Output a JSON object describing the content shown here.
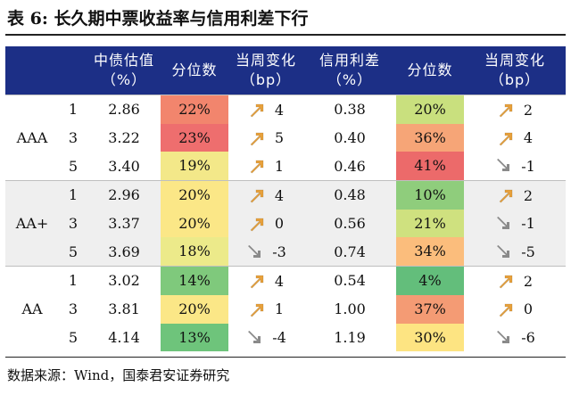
{
  "title": "表 6:  长久期中票收益率与信用利差下行",
  "columns": {
    "yield": [
      "中债估值",
      "（%）"
    ],
    "yield_pct": [
      "分位数"
    ],
    "yield_chg": [
      "当周变化",
      "（bp）"
    ],
    "spread": [
      "信用利差",
      "（%）"
    ],
    "spread_pct": [
      "分位数"
    ],
    "spread_chg": [
      "当周变化",
      "（bp）"
    ]
  },
  "colors": {
    "header_bg": "#1c2f86",
    "arrow_up": "#e8a13c",
    "arrow_down": "#8a8a8a"
  },
  "groups": [
    {
      "rating": "AAA",
      "rows": [
        {
          "tenor": "1",
          "yield": "2.86",
          "yield_pct": "22%",
          "yield_pct_color": "#f2856d",
          "yield_dir": "up",
          "yield_chg": "4",
          "spread": "0.38",
          "spread_pct": "20%",
          "spread_pct_color": "#c9e07e",
          "spread_dir": "up",
          "spread_chg": "2"
        },
        {
          "tenor": "3",
          "yield": "3.22",
          "yield_pct": "23%",
          "yield_pct_color": "#ee6e6e",
          "yield_dir": "up",
          "yield_chg": "5",
          "spread": "0.40",
          "spread_pct": "36%",
          "spread_pct_color": "#f6a577",
          "spread_dir": "up",
          "spread_chg": "4"
        },
        {
          "tenor": "5",
          "yield": "3.40",
          "yield_pct": "19%",
          "yield_pct_color": "#f3e889",
          "yield_dir": "up",
          "yield_chg": "1",
          "spread": "0.46",
          "spread_pct": "41%",
          "spread_pct_color": "#ec6a6a",
          "spread_dir": "down",
          "spread_chg": "-1"
        }
      ]
    },
    {
      "rating": "AA+",
      "rows": [
        {
          "tenor": "1",
          "yield": "2.96",
          "yield_pct": "20%",
          "yield_pct_color": "#fbe787",
          "yield_dir": "up",
          "yield_chg": "4",
          "spread": "0.48",
          "spread_pct": "10%",
          "spread_pct_color": "#8fcd7c",
          "spread_dir": "up",
          "spread_chg": "2"
        },
        {
          "tenor": "3",
          "yield": "3.37",
          "yield_pct": "20%",
          "yield_pct_color": "#fbe787",
          "yield_dir": "up",
          "yield_chg": "0",
          "spread": "0.56",
          "spread_pct": "21%",
          "spread_pct_color": "#cfe17f",
          "spread_dir": "down",
          "spread_chg": "-1"
        },
        {
          "tenor": "5",
          "yield": "3.69",
          "yield_pct": "18%",
          "yield_pct_color": "#ecea8a",
          "yield_dir": "down",
          "yield_chg": "-3",
          "spread": "0.74",
          "spread_pct": "34%",
          "spread_pct_color": "#fbbd7c",
          "spread_dir": "down",
          "spread_chg": "-5"
        }
      ]
    },
    {
      "rating": "AA",
      "rows": [
        {
          "tenor": "1",
          "yield": "3.02",
          "yield_pct": "14%",
          "yield_pct_color": "#7fc97c",
          "yield_dir": "up",
          "yield_chg": "4",
          "spread": "0.54",
          "spread_pct": "4%",
          "spread_pct_color": "#63be7b",
          "spread_dir": "up",
          "spread_chg": "2"
        },
        {
          "tenor": "3",
          "yield": "3.81",
          "yield_pct": "20%",
          "yield_pct_color": "#fbe787",
          "yield_dir": "up",
          "yield_chg": "1",
          "spread": "1.00",
          "spread_pct": "37%",
          "spread_pct_color": "#f49b74",
          "spread_dir": "up",
          "spread_chg": "0"
        },
        {
          "tenor": "5",
          "yield": "4.14",
          "yield_pct": "13%",
          "yield_pct_color": "#6ec47b",
          "yield_dir": "down",
          "yield_chg": "-4",
          "spread": "1.19",
          "spread_pct": "30%",
          "spread_pct_color": "#fde482",
          "spread_dir": "down",
          "spread_chg": "-6"
        }
      ]
    }
  ],
  "source": "数据来源：Wind，国泰君安证券研究"
}
